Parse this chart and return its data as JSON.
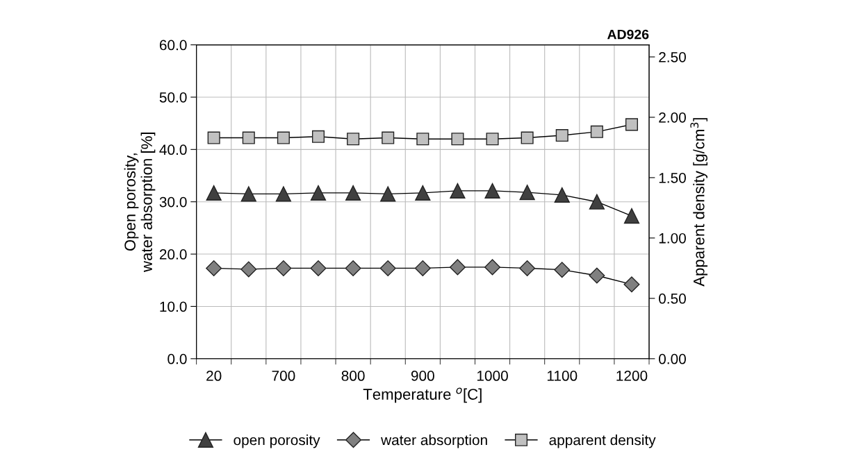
{
  "chart_data": {
    "type": "line",
    "title": "AD926",
    "xlabel": "Temperature $^{o}$[C]",
    "ylabel": "Open porosity,\nwater absorption [%]",
    "y2label": "Apparent density [g/cm$^{3}$]",
    "categories": [
      "20",
      null,
      "700",
      null,
      "800",
      null,
      "900",
      null,
      "1000",
      null,
      "1100",
      null,
      "1200"
    ],
    "series": [
      {
        "name": "open porosity",
        "color": "#404040",
        "marker": "triangle",
        "values": [
          31.7,
          31.5,
          31.5,
          31.7,
          31.7,
          31.5,
          31.7,
          32.1,
          32.1,
          31.8,
          31.3,
          30.0,
          27.3
        ]
      },
      {
        "name": "water absorption",
        "color": "#808080",
        "marker": "diamond",
        "values": [
          17.3,
          17.1,
          17.3,
          17.3,
          17.3,
          17.3,
          17.3,
          17.5,
          17.5,
          17.3,
          17.0,
          15.9,
          14.2
        ]
      },
      {
        "name": "apparent density",
        "color": "#c0c0c0",
        "marker": "square",
        "axis": "y2",
        "values": [
          1.83,
          1.83,
          1.83,
          1.84,
          1.82,
          1.83,
          1.82,
          1.82,
          1.82,
          1.83,
          1.85,
          1.88,
          1.94
        ]
      }
    ],
    "ylim": [
      0,
      60
    ],
    "yticks": [
      {
        "value": 0,
        "label": "0.0"
      },
      {
        "value": 10,
        "label": "10.0"
      },
      {
        "value": 20,
        "label": "20.0"
      },
      {
        "value": 30,
        "label": "30.0"
      },
      {
        "value": 40,
        "label": "40.0"
      },
      {
        "value": 50,
        "label": "50.0"
      },
      {
        "value": 60,
        "label": "60.0"
      }
    ],
    "y2lim": [
      0,
      2.6
    ],
    "y2ticks": [
      {
        "value": 0,
        "label": "0.00"
      },
      {
        "value": 0.5,
        "label": "0.50"
      },
      {
        "value": 1.0,
        "label": "1.00"
      },
      {
        "value": 1.5,
        "label": "1.50"
      },
      {
        "value": 2.0,
        "label": "2.00"
      },
      {
        "value": 2.5,
        "label": "2.50"
      }
    ],
    "grid": true,
    "legend": "bottom",
    "line_style": "solid"
  }
}
